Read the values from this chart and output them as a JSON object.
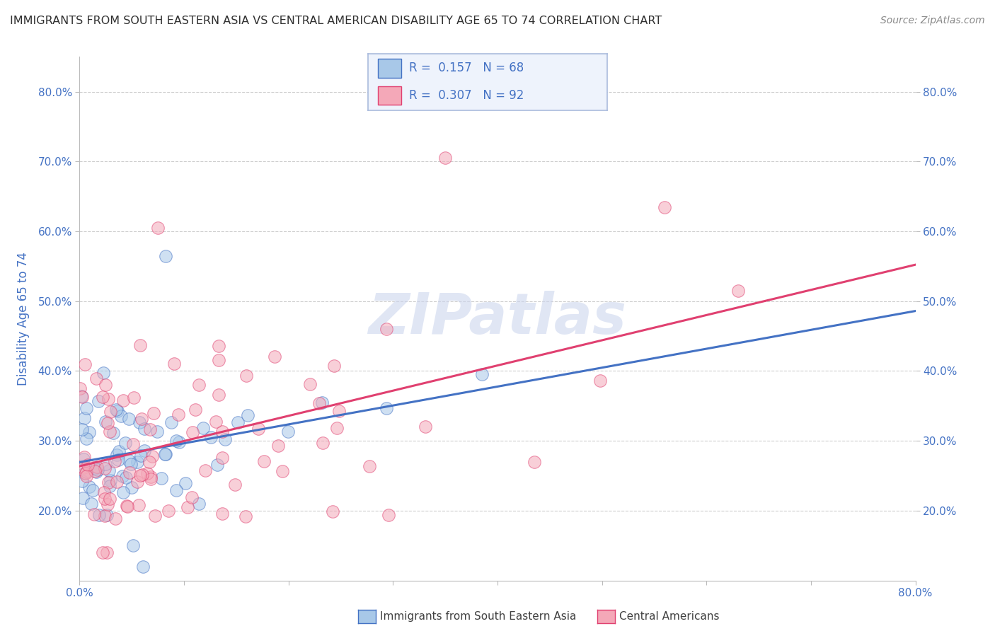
{
  "title": "IMMIGRANTS FROM SOUTH EASTERN ASIA VS CENTRAL AMERICAN DISABILITY AGE 65 TO 74 CORRELATION CHART",
  "source": "Source: ZipAtlas.com",
  "ylabel": "Disability Age 65 to 74",
  "series1_color_fill": "#a8c8e8",
  "series1_color_edge": "#4472c4",
  "series2_color_fill": "#f4a8b8",
  "series2_color_edge": "#e04070",
  "series1_label": "Immigrants from South Eastern Asia",
  "series2_label": "Central Americans",
  "series1_R": 0.157,
  "series1_N": 68,
  "series2_R": 0.307,
  "series2_N": 92,
  "line1_color": "#4472c4",
  "line2_color": "#e04070",
  "watermark": "ZIPatlas",
  "background_color": "#ffffff",
  "legend_box_color": "#eef3fc",
  "legend_border_color": "#aabbdd",
  "title_color": "#303030",
  "axis_label_color": "#4472c4",
  "tick_label_color": "#4472c4",
  "grid_color": "#cccccc",
  "xlim": [
    0.0,
    0.8
  ],
  "ylim": [
    0.1,
    0.85
  ],
  "y_tick_vals": [
    0.2,
    0.3,
    0.4,
    0.5,
    0.6,
    0.7,
    0.8
  ],
  "y_tick_labels": [
    "20.0%",
    "30.0%",
    "40.0%",
    "50.0%",
    "60.0%",
    "70.0%",
    "80.0%"
  ],
  "x_tick_vals": [
    0.0,
    0.1,
    0.2,
    0.3,
    0.4,
    0.5,
    0.6,
    0.7,
    0.8
  ],
  "x_tick_labels": [
    "0.0%",
    "",
    "",
    "",
    "",
    "",
    "",
    "",
    "80.0%"
  ]
}
